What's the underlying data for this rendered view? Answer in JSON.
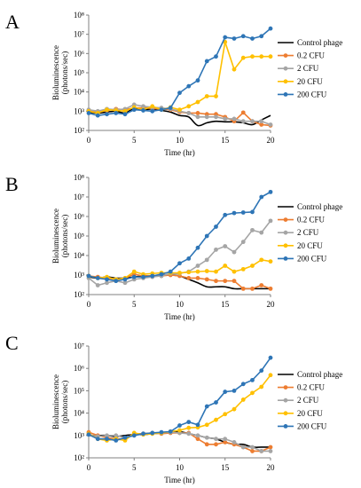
{
  "panels": [
    {
      "letter": "A"
    },
    {
      "letter": "B"
    },
    {
      "letter": "C"
    }
  ],
  "chart_data": [
    {
      "type": "line",
      "xlabel": "Time (hr)",
      "ylabel_line1": "Bioluminescence",
      "ylabel_line2": "(photons/sec)",
      "x_ticks": [
        0,
        5,
        10,
        15,
        20
      ],
      "xlim": [
        0,
        20
      ],
      "y_scale": "log",
      "y_ticks": [
        "10²",
        "10³",
        "10⁴",
        "10⁵",
        "10⁶",
        "10⁷",
        "10⁸"
      ],
      "ylim": [
        100,
        100000000
      ],
      "grid": false,
      "legend_placement": "right",
      "series": [
        {
          "name": "Control phage",
          "color": "#000000",
          "marker": false,
          "smooth": true,
          "x": [
            0,
            1,
            2,
            3,
            4,
            5,
            6,
            7,
            8,
            9,
            10,
            11,
            12,
            13,
            14,
            15,
            16,
            17,
            18,
            19,
            20
          ],
          "y": [
            900,
            800,
            900,
            1000,
            800,
            1400,
            1200,
            1300,
            1100,
            900,
            600,
            500,
            180,
            250,
            300,
            280,
            280,
            250,
            200,
            350,
            600
          ]
        },
        {
          "name": "0.2 CFU",
          "color": "#ED7D31",
          "marker": true,
          "x": [
            0,
            1,
            2,
            3,
            4,
            5,
            6,
            7,
            8,
            9,
            10,
            11,
            12,
            13,
            14,
            15,
            16,
            17,
            18,
            19,
            20
          ],
          "y": [
            1100,
            900,
            1100,
            1300,
            1200,
            1500,
            1500,
            1400,
            1300,
            1200,
            900,
            800,
            800,
            700,
            700,
            500,
            300,
            850,
            300,
            200,
            180
          ]
        },
        {
          "name": "2 CFU",
          "color": "#A5A5A5",
          "marker": true,
          "x": [
            0,
            1,
            2,
            3,
            4,
            5,
            6,
            7,
            8,
            9,
            10,
            11,
            12,
            13,
            14,
            15,
            16,
            17,
            18,
            19,
            20
          ],
          "y": [
            1200,
            1000,
            1300,
            1200,
            1300,
            2200,
            1800,
            1600,
            1500,
            1300,
            1000,
            800,
            500,
            500,
            500,
            400,
            400,
            300,
            300,
            300,
            200
          ]
        },
        {
          "name": "20 CFU",
          "color": "#FFC000",
          "marker": true,
          "x": [
            0,
            1,
            2,
            3,
            4,
            5,
            6,
            7,
            8,
            9,
            10,
            11,
            12,
            13,
            14,
            15,
            16,
            17,
            18,
            19,
            20
          ],
          "y": [
            1000,
            800,
            1200,
            1100,
            1000,
            1600,
            1200,
            1800,
            1200,
            1600,
            1200,
            1800,
            3000,
            6000,
            6000,
            4000000,
            150000,
            600000,
            700000,
            700000,
            700000
          ]
        },
        {
          "name": "200 CFU",
          "color": "#2E75B6",
          "marker": true,
          "x": [
            0,
            1,
            2,
            3,
            4,
            5,
            6,
            7,
            8,
            9,
            10,
            11,
            12,
            13,
            14,
            15,
            16,
            17,
            18,
            19,
            20
          ],
          "y": [
            800,
            600,
            700,
            800,
            700,
            1200,
            1100,
            1000,
            1200,
            1500,
            9000,
            20000,
            40000,
            400000,
            700000,
            7000000,
            6000000,
            8000000,
            6000000,
            8000000,
            20000000
          ]
        }
      ]
    },
    {
      "type": "line",
      "xlabel": "Time (hr)",
      "ylabel_line1": "Bioluminescence",
      "ylabel_line2": "(photons/sec)",
      "x_ticks": [
        0,
        5,
        10,
        15,
        20
      ],
      "xlim": [
        0,
        20
      ],
      "y_scale": "log",
      "y_ticks": [
        "10²",
        "10³",
        "10⁴",
        "10⁵",
        "10⁶",
        "10⁷",
        "10⁸"
      ],
      "ylim": [
        100,
        100000000
      ],
      "grid": false,
      "legend_placement": "right",
      "series": [
        {
          "name": "Control phage",
          "color": "#000000",
          "marker": false,
          "smooth": true,
          "x": [
            0,
            1,
            2,
            3,
            4,
            5,
            6,
            7,
            8,
            9,
            10,
            11,
            12,
            13,
            14,
            15,
            16,
            17,
            18,
            19,
            20
          ],
          "y": [
            800,
            700,
            800,
            700,
            700,
            800,
            900,
            900,
            1000,
            1000,
            900,
            600,
            400,
            250,
            250,
            250,
            200,
            200,
            200,
            200,
            200
          ]
        },
        {
          "name": "0.2 CFU",
          "color": "#ED7D31",
          "marker": true,
          "x": [
            0,
            1,
            2,
            3,
            4,
            5,
            6,
            7,
            8,
            9,
            10,
            11,
            12,
            13,
            14,
            15,
            16,
            17,
            18,
            19,
            20
          ],
          "y": [
            900,
            800,
            700,
            600,
            700,
            1100,
            900,
            900,
            900,
            1000,
            900,
            700,
            700,
            600,
            500,
            500,
            500,
            200,
            200,
            300,
            200
          ]
        },
        {
          "name": "2 CFU",
          "color": "#A5A5A5",
          "marker": true,
          "x": [
            0,
            1,
            2,
            3,
            4,
            5,
            6,
            7,
            8,
            9,
            10,
            11,
            12,
            13,
            14,
            15,
            16,
            17,
            18,
            19,
            20
          ],
          "y": [
            700,
            300,
            400,
            500,
            400,
            600,
            700,
            800,
            900,
            1200,
            1200,
            1500,
            3000,
            6000,
            20000,
            30000,
            15000,
            50000,
            200000,
            150000,
            600000
          ]
        },
        {
          "name": "20 CFU",
          "color": "#FFC000",
          "marker": true,
          "x": [
            0,
            1,
            2,
            3,
            4,
            5,
            6,
            7,
            8,
            9,
            10,
            11,
            12,
            13,
            14,
            15,
            16,
            17,
            18,
            19,
            20
          ],
          "y": [
            900,
            700,
            800,
            600,
            700,
            1500,
            1100,
            1200,
            1300,
            1300,
            1300,
            1400,
            1500,
            1600,
            1500,
            3000,
            1500,
            2000,
            3000,
            6000,
            5000
          ]
        },
        {
          "name": "200 CFU",
          "color": "#2E75B6",
          "marker": true,
          "x": [
            0,
            1,
            2,
            3,
            4,
            5,
            6,
            7,
            8,
            9,
            10,
            11,
            12,
            13,
            14,
            15,
            16,
            17,
            18,
            19,
            20
          ],
          "y": [
            900,
            700,
            600,
            500,
            600,
            800,
            800,
            900,
            1100,
            1500,
            4000,
            7000,
            25000,
            100000,
            300000,
            1200000,
            1500000,
            1600000,
            1700000,
            10000000,
            18000000
          ]
        }
      ]
    },
    {
      "type": "line",
      "xlabel": "Time (hr)",
      "ylabel_line1": "Bioluminescence",
      "ylabel_line2": "(photons/sec)",
      "x_ticks": [
        0,
        5,
        10,
        15,
        20
      ],
      "xlim": [
        0,
        20
      ],
      "y_scale": "log",
      "y_ticks": [
        "10²",
        "10³",
        "10⁴",
        "10⁵",
        "10⁶",
        "10⁷"
      ],
      "ylim": [
        100,
        10000000
      ],
      "grid": false,
      "legend_placement": "right",
      "series": [
        {
          "name": "Control phage",
          "color": "#000000",
          "marker": false,
          "smooth": true,
          "x": [
            0,
            1,
            2,
            3,
            4,
            5,
            6,
            7,
            8,
            9,
            10,
            11,
            12,
            13,
            14,
            15,
            16,
            17,
            18,
            19,
            20
          ],
          "y": [
            1000,
            1000,
            1000,
            900,
            1000,
            1100,
            1100,
            1200,
            1300,
            1400,
            1500,
            1200,
            1000,
            800,
            700,
            500,
            400,
            400,
            300,
            300,
            300
          ]
        },
        {
          "name": "0.2 CFU",
          "color": "#ED7D31",
          "marker": true,
          "x": [
            0,
            1,
            2,
            3,
            4,
            5,
            6,
            7,
            8,
            9,
            10,
            11,
            12,
            13,
            14,
            15,
            16,
            17,
            18,
            19,
            20
          ],
          "y": [
            1400,
            1000,
            800,
            700,
            700,
            1200,
            1200,
            1300,
            1200,
            1300,
            1300,
            1300,
            700,
            400,
            400,
            500,
            400,
            300,
            200,
            200,
            300
          ]
        },
        {
          "name": "2 CFU",
          "color": "#A5A5A5",
          "marker": true,
          "x": [
            0,
            1,
            2,
            3,
            4,
            5,
            6,
            7,
            8,
            9,
            10,
            11,
            12,
            13,
            14,
            15,
            16,
            17,
            18,
            19,
            20
          ],
          "y": [
            1100,
            900,
            1000,
            1000,
            800,
            1000,
            1200,
            1200,
            1300,
            1400,
            1300,
            1200,
            1000,
            800,
            700,
            700,
            500,
            300,
            300,
            200,
            200
          ]
        },
        {
          "name": "20 CFU",
          "color": "#FFC000",
          "marker": true,
          "x": [
            0,
            1,
            2,
            3,
            4,
            5,
            6,
            7,
            8,
            9,
            10,
            11,
            12,
            13,
            14,
            15,
            16,
            17,
            18,
            19,
            20
          ],
          "y": [
            1200,
            700,
            600,
            700,
            600,
            1300,
            1100,
            1200,
            1300,
            1500,
            1700,
            2200,
            2300,
            3000,
            5000,
            9000,
            15000,
            40000,
            80000,
            150000,
            500000
          ]
        },
        {
          "name": "200 CFU",
          "color": "#2E75B6",
          "marker": true,
          "x": [
            0,
            1,
            2,
            3,
            4,
            5,
            6,
            7,
            8,
            9,
            10,
            11,
            12,
            13,
            14,
            15,
            16,
            17,
            18,
            19,
            20
          ],
          "y": [
            1100,
            700,
            700,
            600,
            800,
            1000,
            1200,
            1300,
            1400,
            1500,
            2800,
            4000,
            3000,
            20000,
            30000,
            90000,
            100000,
            200000,
            300000,
            800000,
            3000000
          ]
        }
      ]
    }
  ]
}
